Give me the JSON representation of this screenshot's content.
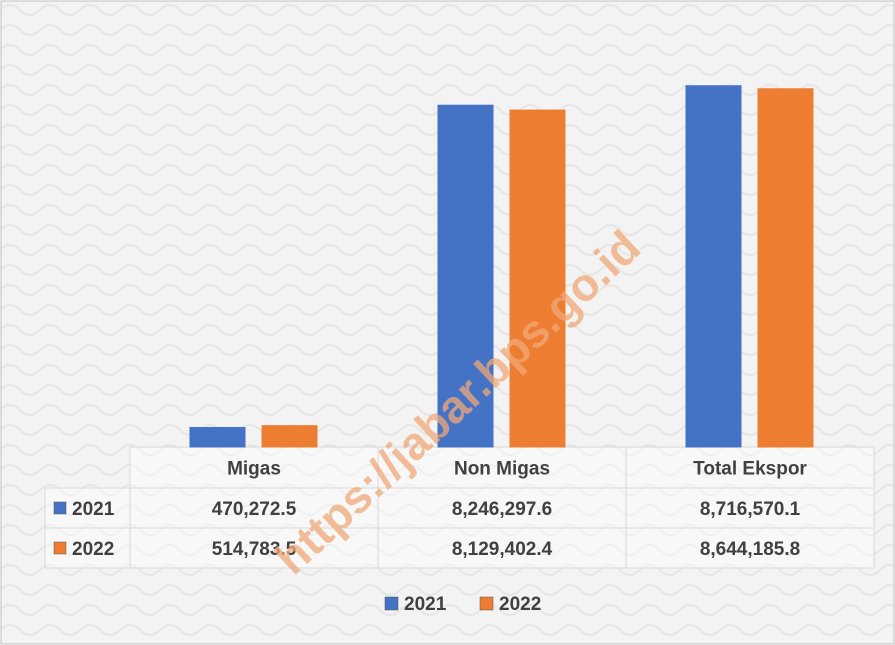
{
  "chart_data": {
    "type": "bar",
    "categories": [
      "Migas",
      "Non Migas",
      "Total Ekspor"
    ],
    "series": [
      {
        "name": "2021",
        "color": "#4472c4",
        "values": [
          470272.5,
          8246297.6,
          8716570.1
        ],
        "value_labels": [
          "470,272.5",
          "8,246,297.6",
          "8,716,570.1"
        ]
      },
      {
        "name": "2022",
        "color": "#ed7d31",
        "values": [
          514783.5,
          8129402.4,
          8644185.8
        ],
        "value_labels": [
          "514,783.5",
          "8,129,402.4",
          "8,644,185.8"
        ]
      }
    ],
    "ylim": [
      0,
      9000000
    ],
    "watermark": "https://jabar.bps.go.id"
  }
}
